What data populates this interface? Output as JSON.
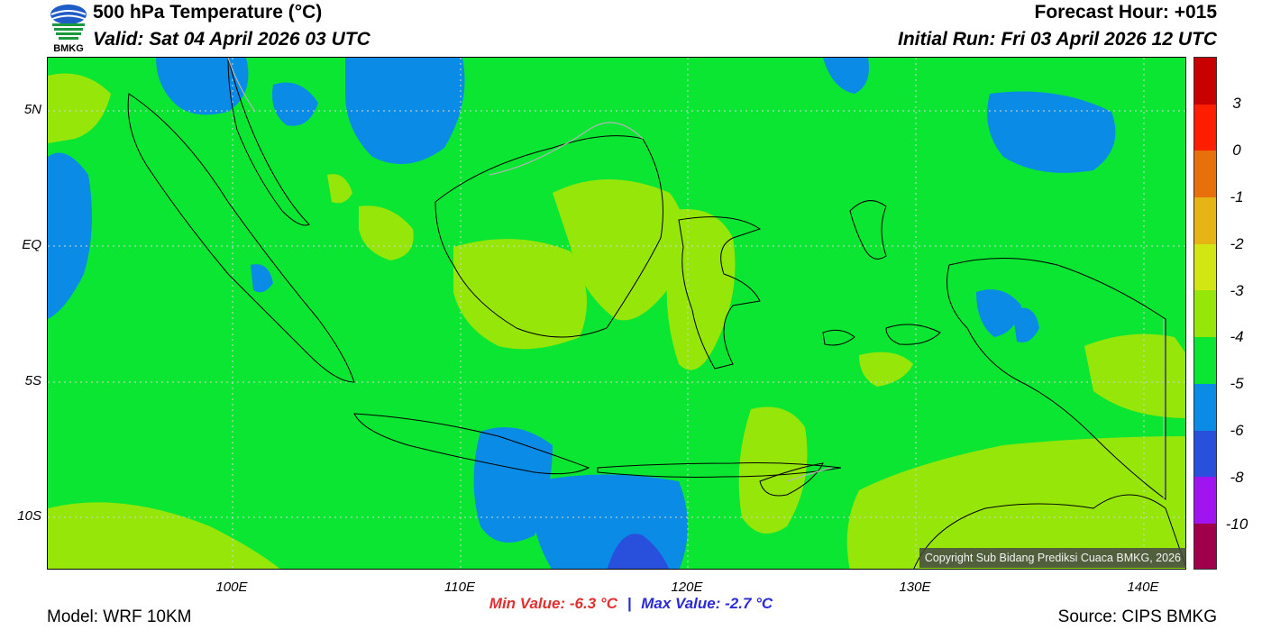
{
  "header": {
    "title": "500 hPa Temperature (°C)",
    "valid": "Valid: Sat 04 April 2026 03 UTC",
    "forecast_hour": "Forecast Hour: +015",
    "initial_run": "Initial Run: Fri 03 April 2026 12 UTC",
    "logo_text": "BMKG"
  },
  "map": {
    "lat_labels": [
      "5N",
      "EQ",
      "5S",
      "10S"
    ],
    "lon_labels": [
      "100E",
      "110E",
      "120E",
      "130E",
      "140E"
    ],
    "colors": {
      "t_minus3_4": "#96e60a",
      "t_minus4_5": "#0ae632",
      "t_minus5_6": "#0a8ce6",
      "t_minus6_8": "#2850dc"
    },
    "copyright": "Copyright Sub Bidang Prediksi Cuaca BMKG, 2026"
  },
  "colorbar": {
    "labels": [
      "3",
      "0",
      "-1",
      "-2",
      "-3",
      "-4",
      "-5",
      "-6",
      "-8",
      "-10"
    ],
    "colors": [
      "#c80000",
      "#ff1e00",
      "#e8700a",
      "#e6b414",
      "#d2e614",
      "#96e60a",
      "#0ae632",
      "#0a8ce6",
      "#2850dc",
      "#a014f0",
      "#a0004b"
    ]
  },
  "stats": {
    "min": "Min Value: -6.3 °C",
    "separator": "|",
    "max": "Max Value: -2.7 °C"
  },
  "footer": {
    "model": "Model: WRF 10KM",
    "source": "Source: CIPS BMKG"
  }
}
